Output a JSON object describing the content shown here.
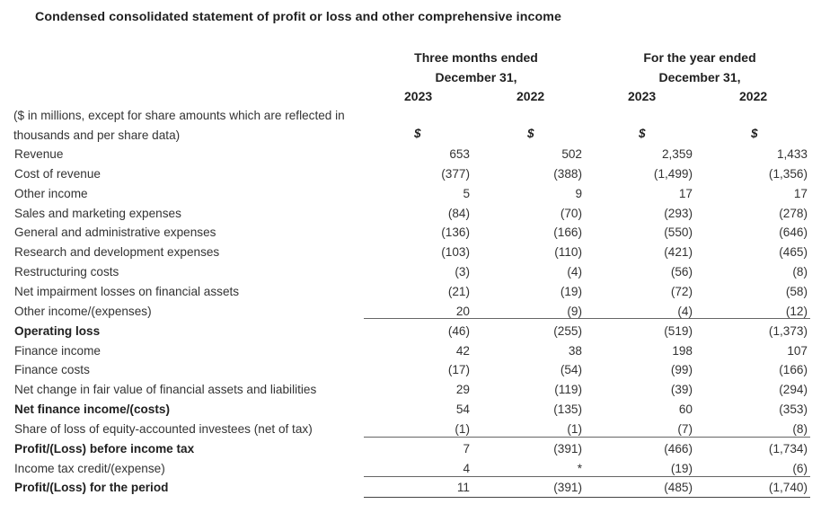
{
  "title": "Condensed consolidated statement of profit or loss and other comprehensive income",
  "headers": {
    "group1": {
      "line1": "Three months ended",
      "line2": "December 31,",
      "years": [
        "2023",
        "2022"
      ]
    },
    "group2": {
      "line1": "For the year ended",
      "line2": "December 31,",
      "years": [
        "2023",
        "2022"
      ]
    }
  },
  "unit_note": "($ in millions, except for share amounts which are reflected in thousands and per share data)",
  "currency_symbol": "$",
  "rows": [
    {
      "label": "Revenue",
      "values": [
        "653",
        "502",
        "2,359",
        "1,433"
      ],
      "bold": false
    },
    {
      "label": "Cost of revenue",
      "values": [
        "(377)",
        "(388)",
        "(1,499)",
        "(1,356)"
      ],
      "bold": false
    },
    {
      "label": "Other income",
      "values": [
        "5",
        "9",
        "17",
        "17"
      ],
      "bold": false
    },
    {
      "label": "Sales and marketing expenses",
      "values": [
        "(84)",
        "(70)",
        "(293)",
        "(278)"
      ],
      "bold": false
    },
    {
      "label": "General and administrative expenses",
      "values": [
        "(136)",
        "(166)",
        "(550)",
        "(646)"
      ],
      "bold": false
    },
    {
      "label": "Research and development expenses",
      "values": [
        "(103)",
        "(110)",
        "(421)",
        "(465)"
      ],
      "bold": false
    },
    {
      "label": "Restructuring costs",
      "values": [
        "(3)",
        "(4)",
        "(56)",
        "(8)"
      ],
      "bold": false
    },
    {
      "label": "Net impairment losses on financial assets",
      "values": [
        "(21)",
        "(19)",
        "(72)",
        "(58)"
      ],
      "bold": false
    },
    {
      "label": "Other income/(expenses)",
      "values": [
        "20",
        "(9)",
        "(4)",
        "(12)"
      ],
      "bold": false
    },
    {
      "label": "Operating loss",
      "values": [
        "(46)",
        "(255)",
        "(519)",
        "(1,373)"
      ],
      "bold": true
    },
    {
      "label": "Finance income",
      "values": [
        "42",
        "38",
        "198",
        "107"
      ],
      "bold": false
    },
    {
      "label": "Finance costs",
      "values": [
        "(17)",
        "(54)",
        "(99)",
        "(166)"
      ],
      "bold": false
    },
    {
      "label": "Net change in fair value of financial assets and liabilities",
      "values": [
        "29",
        "(119)",
        "(39)",
        "(294)"
      ],
      "bold": false
    },
    {
      "label": "Net finance income/(costs)",
      "values": [
        "54",
        "(135)",
        "60",
        "(353)"
      ],
      "bold": true
    },
    {
      "label": "Share of loss of equity-accounted investees (net of tax)",
      "values": [
        "(1)",
        "(1)",
        "(7)",
        "(8)"
      ],
      "bold": false
    },
    {
      "label": "Profit/(Loss) before income tax",
      "values": [
        "7",
        "(391)",
        "(466)",
        "(1,734)"
      ],
      "bold": true
    },
    {
      "label": "Income tax credit/(expense)",
      "values": [
        "4",
        "*",
        "(19)",
        "(6)"
      ],
      "bold": false
    },
    {
      "label": "Profit/(Loss) for the period",
      "values": [
        "11",
        "(391)",
        "(485)",
        "(1,740)"
      ],
      "bold": true
    }
  ]
}
